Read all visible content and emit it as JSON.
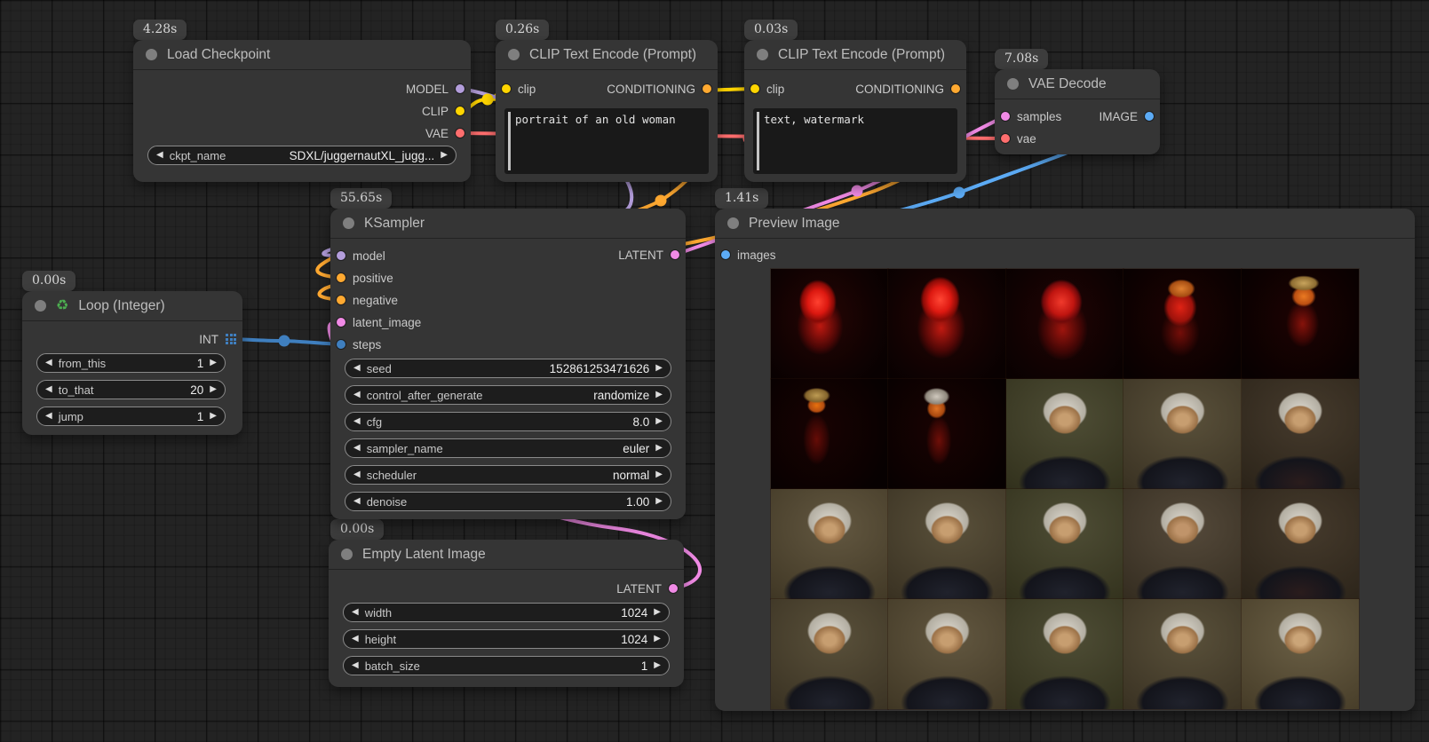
{
  "palette": {
    "model": "#b39ddb",
    "clip": "#ffd500",
    "vae": "#ff6e6e",
    "conditioning": "#ffa931",
    "latent": "#f08ae5",
    "image": "#5cabf5",
    "int": "#3f7fbf"
  },
  "icons": {
    "arrow_left": "◀",
    "arrow_right": "▶",
    "recycle": "♻"
  },
  "nodes": {
    "load_checkpoint": {
      "badge": "4.28s",
      "title": "Load Checkpoint",
      "outputs": [
        "MODEL",
        "CLIP",
        "VAE"
      ],
      "widgets": [
        {
          "label": "ckpt_name",
          "value": "SDXL/juggernautXL_jugg..."
        }
      ]
    },
    "clip_positive": {
      "badge": "0.26s",
      "title": "CLIP Text Encode (Prompt)",
      "inputs": [
        "clip"
      ],
      "outputs": [
        "CONDITIONING"
      ],
      "text": "portrait of an old woman"
    },
    "clip_negative": {
      "badge": "0.03s",
      "title": "CLIP Text Encode (Prompt)",
      "inputs": [
        "clip"
      ],
      "outputs": [
        "CONDITIONING"
      ],
      "text": "text, watermark"
    },
    "vae_decode": {
      "badge": "7.08s",
      "title": "VAE Decode",
      "inputs": [
        "samples",
        "vae"
      ],
      "outputs": [
        "IMAGE"
      ]
    },
    "ksampler": {
      "badge": "55.65s",
      "title": "KSampler",
      "inputs": [
        "model",
        "positive",
        "negative",
        "latent_image",
        "steps"
      ],
      "outputs": [
        "LATENT"
      ],
      "widgets": [
        {
          "label": "seed",
          "value": "152861253471626"
        },
        {
          "label": "control_after_generate",
          "value": "randomize"
        },
        {
          "label": "cfg",
          "value": "8.0"
        },
        {
          "label": "sampler_name",
          "value": "euler"
        },
        {
          "label": "scheduler",
          "value": "normal"
        },
        {
          "label": "denoise",
          "value": "1.00"
        }
      ]
    },
    "loop_integer": {
      "badge": "0.00s",
      "title": "Loop (Integer)",
      "outputs": [
        "INT"
      ],
      "widgets": [
        {
          "label": "from_this",
          "value": "1"
        },
        {
          "label": "to_that",
          "value": "20"
        },
        {
          "label": "jump",
          "value": "1"
        }
      ]
    },
    "empty_latent": {
      "badge": "0.00s",
      "title": "Empty Latent Image",
      "outputs": [
        "LATENT"
      ],
      "widgets": [
        {
          "label": "width",
          "value": "1024"
        },
        {
          "label": "height",
          "value": "1024"
        },
        {
          "label": "batch_size",
          "value": "1"
        }
      ]
    },
    "preview_image": {
      "badge": "1.41s",
      "title": "Preview Image",
      "inputs": [
        "images"
      ]
    }
  },
  "preview_grid": {
    "rows": 4,
    "cols": 5,
    "cells": [
      "red-blob-a",
      "red-blob-b",
      "red-blob-c",
      "emerge-a",
      "emerge-b",
      "emerge-c",
      "emerge-d",
      "portrait-a",
      "portrait-b",
      "portrait-c",
      "portrait-d",
      "portrait-b",
      "portrait-a",
      "portrait-e",
      "portrait-c",
      "portrait-b",
      "portrait-d",
      "portrait-a",
      "portrait-b",
      "portrait-f"
    ]
  }
}
